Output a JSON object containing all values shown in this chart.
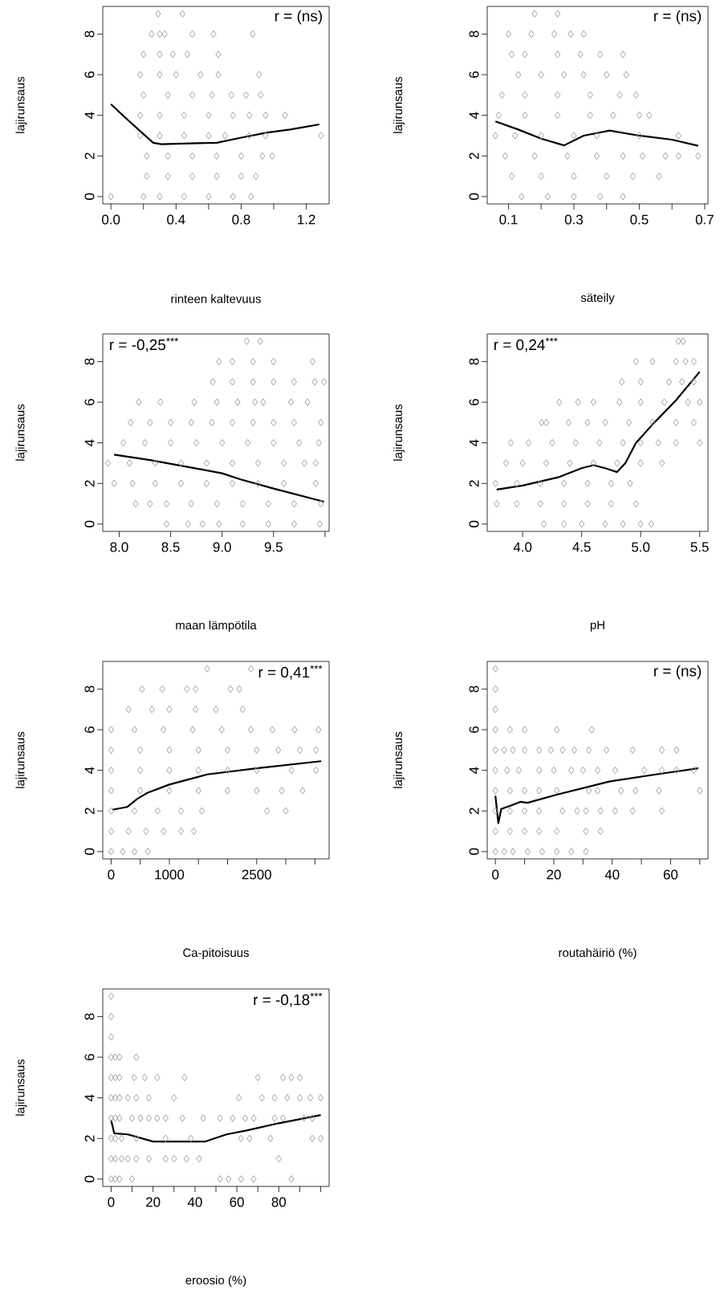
{
  "chart_data": [
    {
      "type": "scatter",
      "xlabel": "rinteen kaltevuus",
      "ylabel": "lajirunsaus",
      "annotations": [
        "r = (ns)"
      ],
      "xlim": [
        -0.05,
        1.34
      ],
      "ylim": [
        -0.36,
        9.36
      ],
      "xticks": [
        {
          "value": 0,
          "label": "0.0"
        },
        {
          "value": 0.2,
          "label": null
        },
        {
          "value": 0.4,
          "label": "0.4"
        },
        {
          "value": 0.6,
          "label": null
        },
        {
          "value": 0.8,
          "label": "0.8"
        },
        {
          "value": 1.0,
          "label": null
        },
        {
          "value": 1.2,
          "label": "1.2"
        }
      ],
      "yticks": [
        0,
        2,
        4,
        6,
        8
      ],
      "series": [
        {
          "color": "#a0a0a0",
          "marker": "diamond",
          "x": [
            0.29,
            0.44,
            0.25,
            0.3,
            0.33,
            0.5,
            0.63,
            0.87,
            0.2,
            0.3,
            0.38,
            0.47,
            0.66,
            0.18,
            0.3,
            0.4,
            0.55,
            0.66,
            0.91,
            0.2,
            0.35,
            0.5,
            0.62,
            0.74,
            0.83,
            0.92,
            0.18,
            0.3,
            0.45,
            0.6,
            0.75,
            0.85,
            0.95,
            1.07,
            0.18,
            0.3,
            0.45,
            0.6,
            0.7,
            0.85,
            0.95,
            1.29,
            0.22,
            0.35,
            0.5,
            0.65,
            0.8,
            0.93,
            0.99,
            0.22,
            0.35,
            0.5,
            0.65,
            0.8,
            0.89,
            0.0,
            0.2,
            0.3,
            0.45,
            0.6,
            0.75,
            0.86
          ],
          "values": [
            9,
            9,
            8,
            8,
            8,
            8,
            8,
            8,
            7,
            7,
            7,
            7,
            7,
            6,
            6,
            6,
            6,
            6,
            6,
            5,
            5,
            5,
            5,
            5,
            5,
            5,
            4,
            4,
            4,
            4,
            4,
            4,
            4,
            4,
            3,
            3,
            3,
            3,
            3,
            3,
            3,
            3,
            2,
            2,
            2,
            2,
            2,
            2,
            2,
            1,
            1,
            1,
            1,
            1,
            1,
            0,
            0,
            0,
            0,
            0,
            0,
            0
          ]
        },
        {
          "type": "line",
          "color": "#000000",
          "x": [
            0.0,
            0.1,
            0.26,
            0.31,
            0.65,
            0.8,
            0.96,
            1.1,
            1.28
          ],
          "values": [
            4.55,
            3.8,
            2.65,
            2.58,
            2.65,
            2.9,
            3.15,
            3.3,
            3.55
          ]
        }
      ]
    },
    {
      "type": "scatter",
      "xlabel": "säteily",
      "ylabel": "lajirunsaus",
      "annotations": [
        "r = (ns)"
      ],
      "xlim": [
        0.035,
        0.71
      ],
      "ylim": [
        -0.36,
        9.36
      ],
      "xticks": [
        {
          "value": 0.1,
          "label": "0.1"
        },
        {
          "value": 0.2,
          "label": null
        },
        {
          "value": 0.3,
          "label": "0.3"
        },
        {
          "value": 0.4,
          "label": null
        },
        {
          "value": 0.5,
          "label": "0.5"
        },
        {
          "value": 0.6,
          "label": null
        },
        {
          "value": 0.7,
          "label": "0.7"
        }
      ],
      "yticks": [
        0,
        2,
        4,
        6,
        8
      ],
      "series": [
        {
          "color": "#a0a0a0",
          "marker": "diamond",
          "x": [
            0.18,
            0.25,
            0.1,
            0.17,
            0.24,
            0.29,
            0.33,
            0.11,
            0.15,
            0.25,
            0.32,
            0.38,
            0.45,
            0.13,
            0.2,
            0.27,
            0.33,
            0.4,
            0.46,
            0.08,
            0.15,
            0.25,
            0.35,
            0.44,
            0.49,
            0.07,
            0.15,
            0.25,
            0.35,
            0.42,
            0.5,
            0.53,
            0.06,
            0.12,
            0.2,
            0.3,
            0.37,
            0.5,
            0.62,
            0.09,
            0.18,
            0.28,
            0.37,
            0.45,
            0.51,
            0.58,
            0.62,
            0.68,
            0.11,
            0.2,
            0.3,
            0.4,
            0.48,
            0.56,
            0.14,
            0.22,
            0.3,
            0.38,
            0.45
          ],
          "values": [
            9,
            9,
            8,
            8,
            8,
            8,
            8,
            7,
            7,
            7,
            7,
            7,
            7,
            6,
            6,
            6,
            6,
            6,
            6,
            5,
            5,
            5,
            5,
            5,
            5,
            4,
            4,
            4,
            4,
            4,
            4,
            4,
            3,
            3,
            3,
            3,
            3,
            3,
            3,
            2,
            2,
            2,
            2,
            2,
            2,
            2,
            2,
            2,
            1,
            1,
            1,
            1,
            1,
            1,
            0,
            0,
            0,
            0,
            0
          ]
        },
        {
          "type": "line",
          "color": "#000000",
          "x": [
            0.06,
            0.13,
            0.2,
            0.27,
            0.33,
            0.41,
            0.5,
            0.6,
            0.68
          ],
          "values": [
            3.7,
            3.3,
            2.85,
            2.52,
            3.0,
            3.25,
            3.0,
            2.8,
            2.5
          ]
        }
      ]
    },
    {
      "type": "scatter",
      "xlabel": "maan lämpötila",
      "ylabel": "lajirunsaus",
      "annotations": [
        "r = -0,25$^{***}$"
      ],
      "xlim": [
        7.84,
        10.04
      ],
      "ylim": [
        -0.36,
        9.36
      ],
      "xticks": [
        {
          "value": 8.0,
          "label": "8.0"
        },
        {
          "value": 8.5,
          "label": "8.5"
        },
        {
          "value": 9.0,
          "label": "9.0"
        },
        {
          "value": 9.5,
          "label": "9.5"
        },
        {
          "value": 10.0,
          "label": null
        }
      ],
      "yticks": [
        0,
        2,
        4,
        6,
        8
      ],
      "series": [
        {
          "color": "#a0a0a0",
          "marker": "diamond",
          "x": [
            9.24,
            9.37,
            8.97,
            9.1,
            9.3,
            9.5,
            9.88,
            8.91,
            9.1,
            9.3,
            9.5,
            9.7,
            9.9,
            9.99,
            8.19,
            8.4,
            8.73,
            8.95,
            9.15,
            9.32,
            9.4,
            9.67,
            9.83,
            8.11,
            8.3,
            8.5,
            8.7,
            8.9,
            9.1,
            9.3,
            9.5,
            9.7,
            9.96,
            8.04,
            8.25,
            8.5,
            8.75,
            9.0,
            9.25,
            9.5,
            9.75,
            9.94,
            7.89,
            8.1,
            8.35,
            8.6,
            8.85,
            9.1,
            9.35,
            9.6,
            9.8,
            9.91,
            7.95,
            8.13,
            8.35,
            8.6,
            8.85,
            9.1,
            9.35,
            9.6,
            9.91,
            8.16,
            8.3,
            8.46,
            8.7,
            8.95,
            9.2,
            9.45,
            9.7,
            9.96,
            8.46,
            8.67,
            8.81,
            8.97,
            9.2,
            9.45,
            9.7,
            9.95
          ],
          "values": [
            9,
            9,
            8,
            8,
            8,
            8,
            8,
            7,
            7,
            7,
            7,
            7,
            7,
            7,
            6,
            6,
            6,
            6,
            6,
            6,
            6,
            6,
            6,
            5,
            5,
            5,
            5,
            5,
            5,
            5,
            5,
            5,
            5,
            4,
            4,
            4,
            4,
            4,
            4,
            4,
            4,
            4,
            3,
            3,
            3,
            3,
            3,
            3,
            3,
            3,
            3,
            3,
            2,
            2,
            2,
            2,
            2,
            2,
            2,
            2,
            2,
            1,
            1,
            1,
            1,
            1,
            1,
            1,
            1,
            1,
            0,
            0,
            0,
            0,
            0,
            0,
            0,
            0
          ]
        },
        {
          "type": "line",
          "color": "#000000",
          "x": [
            7.95,
            8.3,
            8.78,
            9.0,
            9.18,
            9.5,
            9.99
          ],
          "values": [
            3.42,
            3.15,
            2.71,
            2.5,
            2.2,
            1.75,
            1.1
          ]
        }
      ]
    },
    {
      "type": "scatter",
      "xlabel": "pH",
      "ylabel": "lajirunsaus",
      "annotations": [
        "r = 0,24$^{***}$"
      ],
      "xlim": [
        3.7,
        5.57
      ],
      "ylim": [
        -0.36,
        9.36
      ],
      "xticks": [
        {
          "value": 4.0,
          "label": "4.0"
        },
        {
          "value": 4.5,
          "label": "4.5"
        },
        {
          "value": 5.0,
          "label": "5.0"
        },
        {
          "value": 5.5,
          "label": "5.5"
        }
      ],
      "yticks": [
        0,
        2,
        4,
        6,
        8
      ],
      "series": [
        {
          "color": "#a0a0a0",
          "marker": "diamond",
          "x": [
            5.32,
            5.36,
            4.96,
            5.1,
            5.3,
            5.38,
            5.45,
            4.84,
            5.0,
            5.24,
            5.35,
            5.45,
            4.31,
            4.47,
            4.6,
            4.82,
            5.0,
            5.2,
            5.4,
            5.5,
            4.16,
            4.2,
            4.39,
            4.55,
            4.7,
            4.9,
            5.1,
            5.3,
            5.45,
            3.9,
            4.05,
            4.25,
            4.45,
            4.65,
            4.85,
            5.0,
            5.15,
            5.3,
            5.5,
            3.86,
            4.0,
            4.2,
            4.4,
            4.6,
            4.8,
            5.0,
            5.18,
            3.77,
            3.95,
            4.15,
            4.35,
            4.55,
            4.75,
            4.91,
            3.78,
            3.95,
            4.15,
            4.35,
            4.55,
            4.75,
            4.96,
            4.18,
            4.35,
            4.5,
            4.7,
            4.85,
            5.0,
            5.09
          ],
          "values": [
            9,
            9,
            8,
            8,
            8,
            8,
            8,
            7,
            7,
            7,
            7,
            7,
            6,
            6,
            6,
            6,
            6,
            6,
            6,
            6,
            5,
            5,
            5,
            5,
            5,
            5,
            5,
            5,
            5,
            4,
            4,
            4,
            4,
            4,
            4,
            4,
            4,
            4,
            4,
            3,
            3,
            3,
            3,
            3,
            3,
            3,
            3,
            2,
            2,
            2,
            2,
            2,
            2,
            2,
            1,
            1,
            1,
            1,
            1,
            1,
            1,
            0,
            0,
            0,
            0,
            0,
            0,
            0
          ]
        },
        {
          "type": "line",
          "color": "#000000",
          "x": [
            3.78,
            4.0,
            4.3,
            4.5,
            4.6,
            4.7,
            4.8,
            4.87,
            4.96,
            5.1,
            5.3,
            5.5
          ],
          "values": [
            1.7,
            1.9,
            2.3,
            2.75,
            2.9,
            2.75,
            2.56,
            3.0,
            4.0,
            4.9,
            6.1,
            7.5
          ]
        }
      ]
    },
    {
      "type": "scatter",
      "xlabel": "Ca-pitoisuus",
      "ylabel": "lajirunsaus",
      "annotations": [
        "r = 0,41$^{***}$"
      ],
      "xlim": [
        -144,
        3744
      ],
      "ylim": [
        -0.36,
        9.36
      ],
      "xticks": [
        0,
        {
          "value": 500,
          "label": null
        },
        1000,
        {
          "value": 1500,
          "label": null
        },
        {
          "value": 2000,
          "label": null
        },
        2500,
        {
          "value": 3000,
          "label": null
        },
        {
          "value": 3500,
          "label": null
        }
      ],
      "yticks": [
        0,
        2,
        4,
        6,
        8
      ],
      "series": [
        {
          "color": "#a0a0a0",
          "marker": "diamond",
          "x": [
            1650,
            2400,
            530,
            880,
            1300,
            1450,
            2050,
            2200,
            300,
            700,
            1000,
            1450,
            1800,
            2260,
            0,
            400,
            900,
            1400,
            1900,
            2400,
            2770,
            3150,
            3560,
            0,
            500,
            1000,
            1500,
            2000,
            2500,
            2870,
            3240,
            3520,
            0,
            500,
            1000,
            1500,
            2000,
            2500,
            3100,
            3520,
            0,
            500,
            1000,
            1500,
            2000,
            2500,
            2930,
            3290,
            0,
            400,
            800,
            1200,
            1560,
            2680,
            3000,
            0,
            300,
            600,
            900,
            1200,
            1420,
            0,
            200,
            400,
            630
          ],
          "values": [
            9,
            9,
            8,
            8,
            8,
            8,
            8,
            8,
            7,
            7,
            7,
            7,
            7,
            7,
            6,
            6,
            6,
            6,
            6,
            6,
            6,
            6,
            6,
            5,
            5,
            5,
            5,
            5,
            5,
            5,
            5,
            5,
            4,
            4,
            4,
            4,
            4,
            4,
            4,
            4,
            3,
            3,
            3,
            3,
            3,
            3,
            3,
            3,
            2,
            2,
            2,
            2,
            2,
            2,
            2,
            1,
            1,
            1,
            1,
            1,
            1,
            0,
            0,
            0,
            0
          ]
        },
        {
          "type": "line",
          "color": "#000000",
          "x": [
            20,
            280,
            450,
            630,
            1000,
            1650,
            2500,
            3610
          ],
          "values": [
            2.06,
            2.2,
            2.6,
            2.9,
            3.3,
            3.8,
            4.1,
            4.45
          ]
        }
      ]
    },
    {
      "type": "scatter",
      "xlabel": "routahäiriö (%)",
      "ylabel": "lajirunsaus",
      "annotations": [
        "r = (ns)"
      ],
      "xlim": [
        -2.8,
        72.8
      ],
      "ylim": [
        -0.36,
        9.36
      ],
      "xticks": [
        0,
        {
          "value": 10,
          "label": null
        },
        20,
        {
          "value": 30,
          "label": null
        },
        40,
        {
          "value": 50,
          "label": null
        },
        60,
        {
          "value": 70,
          "label": null
        }
      ],
      "yticks": [
        0,
        2,
        4,
        6,
        8
      ],
      "series": [
        {
          "color": "#a0a0a0",
          "marker": "diamond",
          "x": [
            0,
            0,
            0,
            0,
            5,
            10,
            21,
            33,
            0,
            3,
            6,
            10,
            15,
            19,
            23,
            27,
            32,
            38,
            47,
            57,
            62,
            0,
            4,
            8,
            15,
            20,
            26,
            30,
            35,
            41,
            51,
            57,
            62,
            68,
            0,
            5,
            10,
            15,
            21,
            32,
            35,
            43,
            48,
            56,
            70,
            0,
            5,
            10,
            15,
            23,
            28,
            31,
            36,
            41,
            47,
            57,
            0,
            5,
            10,
            15,
            21,
            31,
            36,
            0,
            3,
            6,
            11,
            16,
            21,
            26,
            31
          ],
          "values": [
            9,
            8,
            7,
            6,
            6,
            6,
            6,
            6,
            5,
            5,
            5,
            5,
            5,
            5,
            5,
            5,
            5,
            5,
            5,
            5,
            5,
            4,
            4,
            4,
            4,
            4,
            4,
            4,
            4,
            4,
            4,
            4,
            4,
            4,
            3,
            3,
            3,
            3,
            3,
            3,
            3,
            3,
            3,
            3,
            3,
            2,
            2,
            2,
            2,
            2,
            2,
            2,
            2,
            2,
            2,
            2,
            1,
            1,
            1,
            1,
            1,
            1,
            1,
            0,
            0,
            0,
            0,
            0,
            0,
            0,
            0
          ]
        },
        {
          "type": "line",
          "color": "#000000",
          "x": [
            0,
            1,
            2,
            5,
            8.5,
            11,
            21,
            39,
            55,
            69.5
          ],
          "values": [
            2.75,
            1.4,
            2.1,
            2.25,
            2.45,
            2.4,
            2.8,
            3.45,
            3.8,
            4.1
          ]
        }
      ]
    },
    {
      "type": "scatter",
      "xlabel": "eroosio (%)",
      "ylabel": "lajirunsaus",
      "annotations": [
        "r = -0,18$^{***}$"
      ],
      "xlim": [
        -4,
        104
      ],
      "ylim": [
        -0.36,
        9.36
      ],
      "xticks": [
        0,
        {
          "value": 10,
          "label": null
        },
        20,
        {
          "value": 30,
          "label": null
        },
        40,
        {
          "value": 50,
          "label": null
        },
        60,
        {
          "value": 70,
          "label": null
        },
        80,
        {
          "value": 90,
          "label": null
        },
        {
          "value": 100,
          "label": null
        }
      ],
      "yticks": [
        0,
        2,
        4,
        6,
        8
      ],
      "series": [
        {
          "color": "#a0a0a0",
          "marker": "diamond",
          "x": [
            0,
            0,
            0,
            0,
            2,
            4,
            12,
            0,
            2,
            4,
            11,
            16,
            22,
            35,
            70,
            82,
            86,
            90,
            0,
            2,
            4,
            8,
            12,
            18,
            30,
            61,
            72,
            78,
            84,
            90,
            95,
            100,
            0,
            2,
            4,
            10,
            14,
            18,
            22,
            26,
            34,
            44,
            52,
            58,
            64,
            68,
            78,
            82,
            92,
            96,
            0,
            2,
            5,
            12,
            26,
            38,
            62,
            66,
            76,
            96,
            100,
            0,
            2,
            5,
            8,
            12,
            18,
            26,
            30,
            36,
            42,
            80,
            0,
            2,
            4,
            10,
            52,
            56,
            62,
            68,
            86
          ],
          "values": [
            9,
            8,
            7,
            6,
            6,
            6,
            6,
            5,
            5,
            5,
            5,
            5,
            5,
            5,
            5,
            5,
            5,
            5,
            4,
            4,
            4,
            4,
            4,
            4,
            4,
            4,
            4,
            4,
            4,
            4,
            4,
            4,
            3,
            3,
            3,
            3,
            3,
            3,
            3,
            3,
            3,
            3,
            3,
            3,
            3,
            3,
            3,
            3,
            3,
            3,
            2,
            2,
            2,
            2,
            2,
            2,
            2,
            2,
            2,
            2,
            2,
            1,
            1,
            1,
            1,
            1,
            1,
            1,
            1,
            1,
            1,
            1,
            0,
            0,
            0,
            0,
            0,
            0,
            0,
            0,
            0
          ]
        },
        {
          "type": "line",
          "color": "#000000",
          "x": [
            0,
            1.5,
            8,
            20,
            45,
            55,
            65,
            80,
            100
          ],
          "values": [
            2.9,
            2.25,
            2.2,
            1.85,
            1.85,
            2.2,
            2.4,
            2.75,
            3.15
          ]
        }
      ]
    }
  ]
}
